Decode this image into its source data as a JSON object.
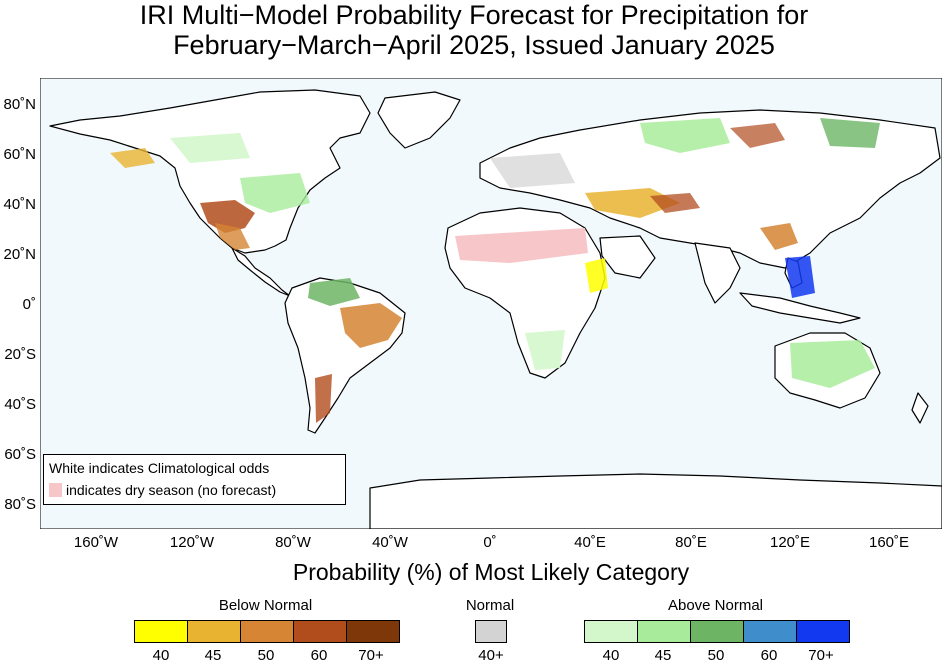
{
  "title": {
    "line1": "IRI Multi−Model Probability Forecast for Precipitation for",
    "line2": "February−March−April 2025, Issued January 2025"
  },
  "map": {
    "lat_labels": [
      "80˚N",
      "60˚N",
      "40˚N",
      "20˚N",
      "0˚",
      "20˚S",
      "40˚S",
      "60˚S",
      "80˚S"
    ],
    "lon_labels": [
      "160˚W",
      "120˚W",
      "80˚W",
      "40˚W",
      "0˚",
      "40˚E",
      "80˚E",
      "120˚E",
      "160˚E"
    ],
    "ocean_color": "#f2f9fd"
  },
  "legend": {
    "line1": "White indicates Climatological odds",
    "line2": "indicates dry season (no forecast)",
    "dry_color": "#f7c6c9"
  },
  "xlabel": "Probability (%) of Most Likely Category",
  "colorbar": {
    "below": {
      "label": "Below Normal",
      "colors": [
        "#ffff00",
        "#e8b330",
        "#d58533",
        "#b14c1d",
        "#7d3708"
      ],
      "ticks": [
        "40",
        "45",
        "50",
        "60",
        "70+"
      ]
    },
    "normal": {
      "label": "Normal",
      "colors": [
        "#d3d3d3"
      ],
      "ticks": [
        "40+"
      ]
    },
    "above": {
      "label": "Above Normal",
      "colors": [
        "#d3f7cb",
        "#a8ec9b",
        "#6db565",
        "#3f8ecb",
        "#1238f0"
      ],
      "ticks": [
        "40",
        "45",
        "50",
        "60",
        "70+"
      ]
    }
  }
}
